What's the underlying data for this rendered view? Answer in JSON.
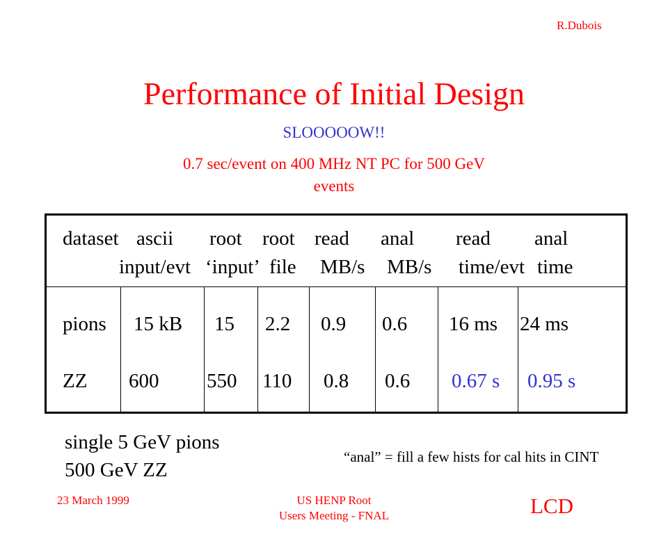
{
  "author": "R.Dubois",
  "title": "Performance of Initial Design",
  "subtitle": "SLOOOOOW!!",
  "note_lines": [
    "0.7 sec/event on 400 MHz NT PC for 500 GeV",
    "events"
  ],
  "table": {
    "header_row1": [
      "dataset",
      "ascii",
      "root",
      "root",
      "read",
      "anal",
      "read",
      "anal"
    ],
    "header_row2": [
      "input/evt",
      "‘input’",
      "file",
      "MB/s",
      "MB/s",
      "time/evt",
      "time"
    ],
    "rows": [
      [
        "pions",
        "15 kB",
        "15",
        "2.2",
        "0.9",
        "0.6",
        "16 ms",
        "24 ms"
      ],
      [
        "ZZ",
        "600",
        "550",
        "110",
        "0.8",
        "0.6",
        "0.67 s",
        "0.95 s"
      ]
    ]
  },
  "samples": [
    "single 5 GeV pions",
    "500 GeV ZZ"
  ],
  "anal_note": "“anal” = fill a few hists for cal hits in CINT",
  "footer": {
    "date": "23 March 1999",
    "meeting_lines": [
      "US HENP Root",
      "Users Meeting - FNAL"
    ],
    "logo": "LCD"
  },
  "colors": {
    "title": "#ff0000",
    "highlight": "#3333cc",
    "text": "#000000"
  }
}
